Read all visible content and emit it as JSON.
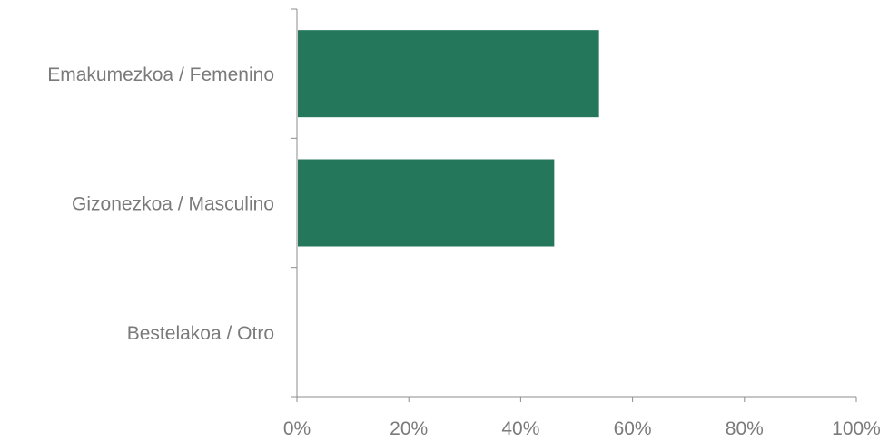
{
  "chart_data": {
    "type": "bar",
    "orientation": "horizontal",
    "categories": [
      "Emakumezkoa / Femenino",
      "Gizonezkoa / Masculino",
      "Bestelakoa / Otro"
    ],
    "values": [
      54,
      46,
      0
    ],
    "x_ticks": [
      "0%",
      "20%",
      "40%",
      "60%",
      "80%",
      "100%"
    ],
    "xlim": [
      0,
      100
    ],
    "title": "",
    "xlabel": "",
    "ylabel": "",
    "grid": false,
    "legend": "none",
    "bar_color": "#25775C",
    "axis_color": "#8C8C8C",
    "label_color": "#7A7A7A"
  }
}
